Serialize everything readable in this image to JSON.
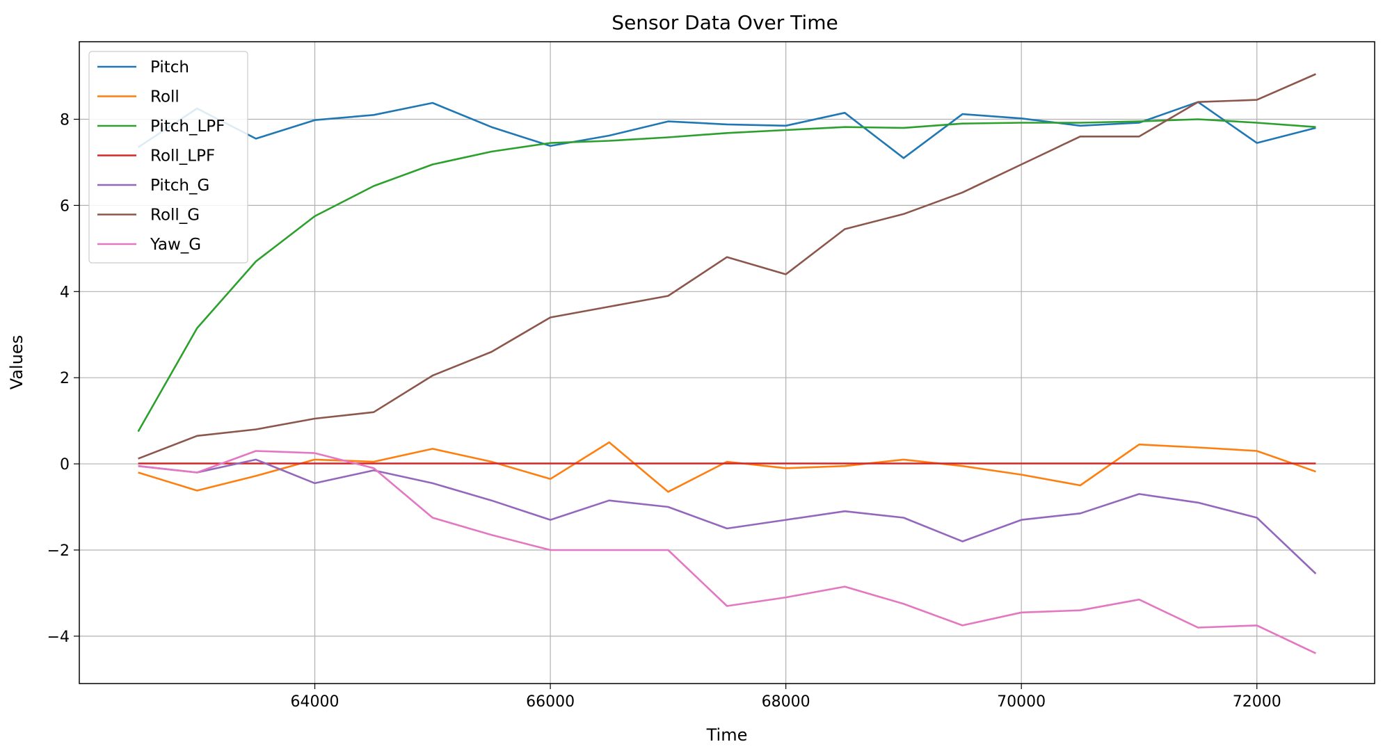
{
  "chart_data": {
    "type": "line",
    "title": "Sensor Data Over Time",
    "xlabel": "Time",
    "ylabel": "Values",
    "xlim": [
      62000,
      73000
    ],
    "ylim": [
      -5.1,
      9.8
    ],
    "xticks": [
      64000,
      66000,
      68000,
      70000,
      72000
    ],
    "xtick_labels": [
      "64000",
      "66000",
      "68000",
      "70000",
      "72000"
    ],
    "yticks": [
      -4,
      -2,
      0,
      2,
      4,
      6,
      8
    ],
    "ytick_labels": [
      "−4",
      "−2",
      "0",
      "2",
      "4",
      "6",
      "8"
    ],
    "grid": true,
    "legend_position": "top-left",
    "x": [
      62500,
      63000,
      63500,
      64000,
      64500,
      65000,
      65500,
      66000,
      66500,
      67000,
      67500,
      68000,
      68500,
      69000,
      69500,
      70000,
      70500,
      71000,
      71500,
      72000,
      72500
    ],
    "series": [
      {
        "name": "Pitch",
        "color": "#1f77b4",
        "values": [
          7.35,
          8.25,
          7.55,
          7.98,
          8.1,
          8.38,
          7.82,
          7.38,
          7.62,
          7.95,
          7.88,
          7.85,
          8.15,
          7.1,
          8.12,
          8.02,
          7.85,
          7.92,
          8.4,
          7.45,
          7.8
        ]
      },
      {
        "name": "Roll",
        "color": "#ff7f0e",
        "values": [
          -0.2,
          -0.62,
          -0.28,
          0.1,
          0.05,
          0.35,
          0.05,
          -0.35,
          0.5,
          -0.65,
          0.05,
          -0.1,
          -0.05,
          0.1,
          -0.05,
          -0.25,
          -0.5,
          0.45,
          0.38,
          0.3,
          -0.18
        ]
      },
      {
        "name": "Pitch_LPF",
        "color": "#2ca02c",
        "values": [
          0.75,
          3.15,
          4.7,
          5.75,
          6.45,
          6.95,
          7.25,
          7.45,
          7.5,
          7.58,
          7.68,
          7.75,
          7.82,
          7.8,
          7.9,
          7.92,
          7.92,
          7.95,
          8.0,
          7.92,
          7.82
        ]
      },
      {
        "name": "Roll_LPF",
        "color": "#d62728",
        "values": [
          0.01,
          0.01,
          0.01,
          0.01,
          0.01,
          0.01,
          0.01,
          0.01,
          0.01,
          0.01,
          0.01,
          0.01,
          0.01,
          0.01,
          0.01,
          0.01,
          0.01,
          0.01,
          0.01,
          0.01,
          0.01
        ]
      },
      {
        "name": "Pitch_G",
        "color": "#9467bd",
        "values": [
          -0.05,
          -0.2,
          0.1,
          -0.45,
          -0.15,
          -0.45,
          -0.85,
          -1.3,
          -0.85,
          -1.0,
          -1.5,
          -1.3,
          -1.1,
          -1.25,
          -1.8,
          -1.3,
          -1.15,
          -0.7,
          -0.9,
          -1.25,
          -2.55
        ]
      },
      {
        "name": "Roll_G",
        "color": "#8c564b",
        "values": [
          0.12,
          0.65,
          0.8,
          1.05,
          1.2,
          2.05,
          2.6,
          3.4,
          3.65,
          3.9,
          4.8,
          4.4,
          5.45,
          5.8,
          6.3,
          6.95,
          7.6,
          7.6,
          8.4,
          8.45,
          9.05
        ]
      },
      {
        "name": "Yaw_G",
        "color": "#e377c2",
        "values": [
          -0.05,
          -0.2,
          0.3,
          0.25,
          -0.1,
          -1.25,
          -1.65,
          -2.0,
          -2.0,
          -2.0,
          -3.3,
          -3.1,
          -2.85,
          -3.25,
          -3.75,
          -3.45,
          -3.4,
          -3.15,
          -3.8,
          -3.75,
          -4.4
        ]
      }
    ]
  }
}
